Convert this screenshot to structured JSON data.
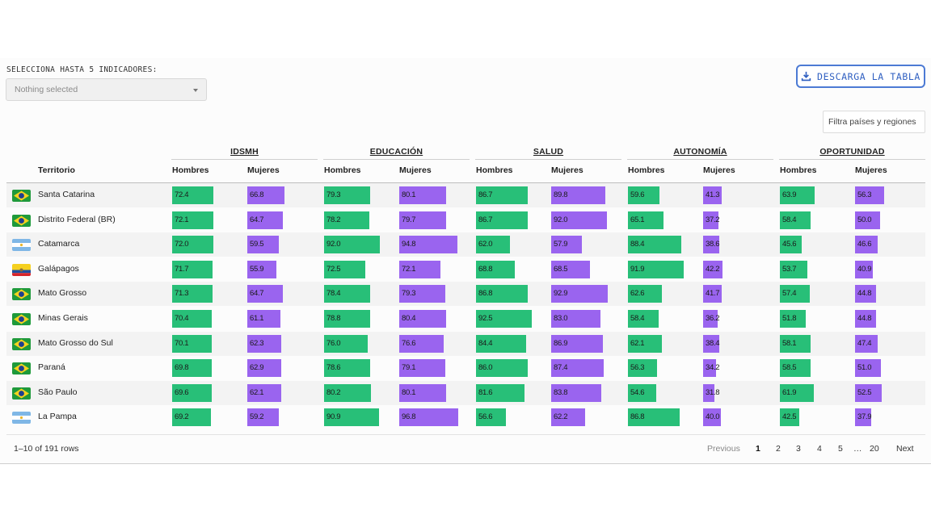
{
  "indicator_select": {
    "label": "SELECCIONA HASTA 5 INDICADORES:",
    "placeholder": "Nothing selected"
  },
  "download_button": {
    "label": "DESCARGA LA TABLA",
    "icon": "download-icon"
  },
  "filter_input": {
    "placeholder": "Filtra países y regiones"
  },
  "table": {
    "territory_header": "Territorio",
    "groups": [
      {
        "name": "IDSMH",
        "men": "Hombres",
        "women": "Mujeres"
      },
      {
        "name": "EDUCACIÓN",
        "men": "Hombres",
        "women": "Mujeres"
      },
      {
        "name": "SALUD",
        "men": "Hombres",
        "women": "Mujeres"
      },
      {
        "name": "AUTONOMÍA",
        "men": "Hombres",
        "women": "Mujeres"
      },
      {
        "name": "OPORTUNIDAD",
        "men": "Hombres",
        "women": "Mujeres"
      }
    ],
    "colors": {
      "men": "#28bf78",
      "women": "#9a64ef"
    },
    "rows": [
      {
        "territory": "Santa Catarina",
        "flag": "brazil-flag-icon",
        "values": [
          "72.4",
          "66.8",
          "79.3",
          "80.1",
          "86.7",
          "89.8",
          "59.6",
          "41.3",
          "63.9",
          "56.3"
        ]
      },
      {
        "territory": "Distrito Federal (BR)",
        "flag": "brazil-flag-icon",
        "values": [
          "72.1",
          "64.7",
          "78.2",
          "79.7",
          "86.7",
          "92.0",
          "65.1",
          "37.2",
          "58.4",
          "50.0"
        ]
      },
      {
        "territory": "Catamarca",
        "flag": "argentina-flag-icon",
        "values": [
          "72.0",
          "59.5",
          "92.0",
          "94.8",
          "62.0",
          "57.9",
          "88.4",
          "38.6",
          "45.6",
          "46.6"
        ]
      },
      {
        "territory": "Galápagos",
        "flag": "ecuador-flag-icon",
        "values": [
          "71.7",
          "55.9",
          "72.5",
          "72.1",
          "68.8",
          "68.5",
          "91.9",
          "42.2",
          "53.7",
          "40.9"
        ]
      },
      {
        "territory": "Mato Grosso",
        "flag": "brazil-flag-icon",
        "values": [
          "71.3",
          "64.7",
          "78.4",
          "79.3",
          "86.8",
          "92.9",
          "62.6",
          "41.7",
          "57.4",
          "44.8"
        ]
      },
      {
        "territory": "Minas Gerais",
        "flag": "brazil-flag-icon",
        "values": [
          "70.4",
          "61.1",
          "78.8",
          "80.4",
          "92.5",
          "83.0",
          "58.4",
          "36.2",
          "51.8",
          "44.8"
        ]
      },
      {
        "territory": "Mato Grosso do Sul",
        "flag": "brazil-flag-icon",
        "values": [
          "70.1",
          "62.3",
          "76.0",
          "76.6",
          "84.4",
          "86.9",
          "62.1",
          "38.4",
          "58.1",
          "47.4"
        ]
      },
      {
        "territory": "Paraná",
        "flag": "brazil-flag-icon",
        "values": [
          "69.8",
          "62.9",
          "78.6",
          "79.1",
          "86.0",
          "87.4",
          "56.3",
          "34.2",
          "58.5",
          "51.0"
        ]
      },
      {
        "territory": "São Paulo",
        "flag": "brazil-flag-icon",
        "values": [
          "69.6",
          "62.1",
          "80.2",
          "80.1",
          "81.6",
          "83.8",
          "54.6",
          "31.8",
          "61.9",
          "52.5"
        ]
      },
      {
        "territory": "La Pampa",
        "flag": "argentina-flag-icon",
        "values": [
          "69.2",
          "59.2",
          "90.9",
          "96.8",
          "56.6",
          "62.2",
          "86.8",
          "40.0",
          "42.5",
          "37.9"
        ]
      }
    ]
  },
  "pagination": {
    "row_count": "1–10 of 191 rows",
    "previous": "Previous",
    "pages": [
      "1",
      "2",
      "3",
      "4",
      "5",
      "…",
      "20"
    ],
    "current": "1",
    "next": "Next"
  }
}
